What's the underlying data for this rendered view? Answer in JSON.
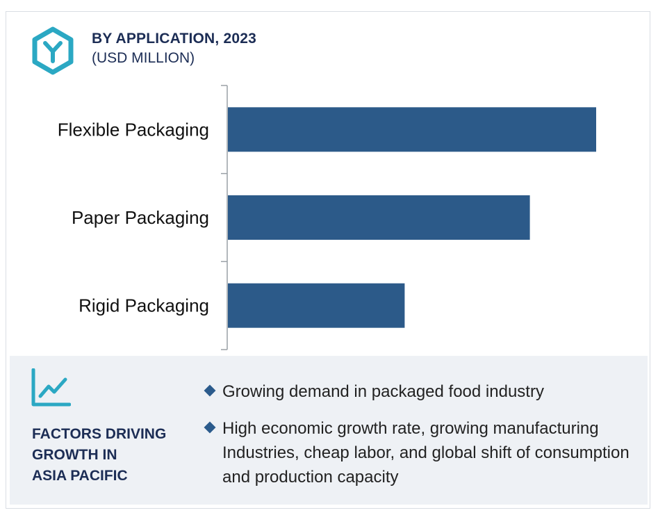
{
  "header": {
    "title": "BY APPLICATION, 2023",
    "subtitle": "(USD MILLION)",
    "logo_icon": "hexagon-y-logo-icon",
    "accent_color": "#2ba8c3"
  },
  "chart_data": {
    "type": "bar",
    "orientation": "horizontal",
    "categories": [
      "Flexible Packaging",
      "Paper Packaging",
      "Rigid Packaging"
    ],
    "values": [
      100,
      82,
      48
    ],
    "value_unit_note": "relative bar lengths (no axis values shown)",
    "bar_color": "#2c5a89",
    "grid": false,
    "legend": "none"
  },
  "factors": {
    "icon": "trend-chart-icon",
    "title_lines": [
      "FACTORS DRIVING",
      "GROWTH IN",
      "ASIA PACIFIC"
    ],
    "bullets": [
      "Growing demand in packaged food industry",
      "High economic growth rate, growing manufacturing Industries, cheap labor, and global shift of consumption and production capacity"
    ]
  }
}
